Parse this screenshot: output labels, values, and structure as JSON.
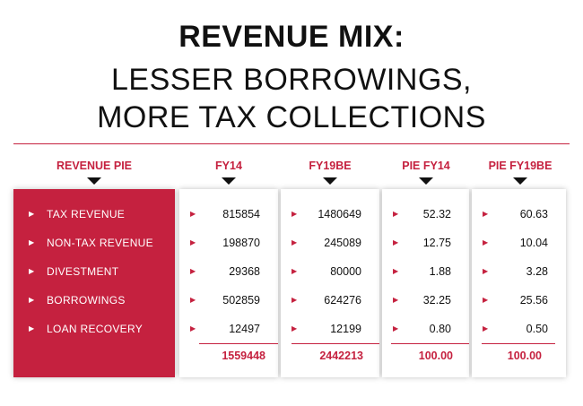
{
  "title": {
    "line1": "REVENUE MIX:",
    "line2": "LESSER BORROWINGS,",
    "line3": "MORE TAX COLLECTIONS"
  },
  "headers": [
    "REVENUE PIE",
    "FY14",
    "FY19BE",
    "PIE FY14",
    "PIE FY19BE"
  ],
  "rows": [
    {
      "label": "TAX REVENUE",
      "fy14": "815854",
      "fy19be": "1480649",
      "pie_fy14": "52.32",
      "pie_fy19be": "60.63"
    },
    {
      "label": "NON-TAX REVENUE",
      "fy14": "198870",
      "fy19be": "245089",
      "pie_fy14": "12.75",
      "pie_fy19be": "10.04"
    },
    {
      "label": "DIVESTMENT",
      "fy14": "29368",
      "fy19be": "80000",
      "pie_fy14": "1.88",
      "pie_fy19be": "3.28"
    },
    {
      "label": "BORROWINGS",
      "fy14": "502859",
      "fy19be": "624276",
      "pie_fy14": "32.25",
      "pie_fy19be": "25.56"
    },
    {
      "label": "LOAN RECOVERY",
      "fy14": "12497",
      "fy19be": "12199",
      "pie_fy14": "0.80",
      "pie_fy19be": "0.50"
    }
  ],
  "totals": {
    "fy14": "1559448",
    "fy19be": "2442213",
    "pie_fy14": "100.00",
    "pie_fy19be": "100.00"
  },
  "colors": {
    "accent": "#c5213f",
    "text": "#111111"
  },
  "icons": {
    "row_marker": "triangle-right-icon",
    "header_marker": "triangle-down-icon"
  }
}
